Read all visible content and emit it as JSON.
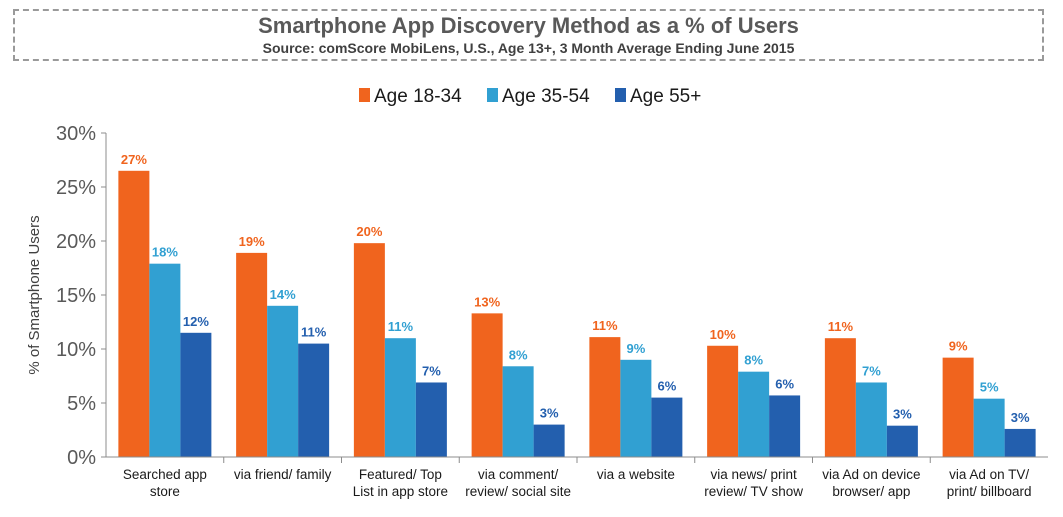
{
  "title": "Smartphone App Discovery Method as a % of Users",
  "subtitle": "Source: comScore MobiLens, U.S., Age 13+, 3 Month Average Ending June 2015",
  "chart_data": {
    "type": "bar",
    "title": "Smartphone App Discovery Method as a % of Users",
    "subtitle": "Source: comScore MobiLens, U.S., Age 13+, 3 Month Average Ending June 2015",
    "ylabel": "% of Smartphone Users",
    "xlabel": "",
    "ylim": [
      0,
      30
    ],
    "yticks": [
      "0%",
      "5%",
      "10%",
      "15%",
      "20%",
      "25%",
      "30%"
    ],
    "grid": false,
    "legend_position": "top-center",
    "categories": [
      [
        "Searched app",
        "store"
      ],
      [
        "via friend/ family"
      ],
      [
        "Featured/ Top",
        "List in app store"
      ],
      [
        "via comment/",
        "review/ social site"
      ],
      [
        "via a website"
      ],
      [
        "via news/ print",
        "review/ TV show"
      ],
      [
        "via Ad on device",
        "browser/ app"
      ],
      [
        "via Ad on TV/",
        "print/ billboard"
      ]
    ],
    "series": [
      {
        "name": "Age 18-34",
        "color": "#f0641e",
        "values": [
          26.5,
          18.9,
          19.8,
          13.3,
          11.1,
          10.3,
          11.0,
          9.2
        ],
        "labels": [
          "27%",
          "19%",
          "20%",
          "13%",
          "11%",
          "10%",
          "11%",
          "9%"
        ]
      },
      {
        "name": "Age 35-54",
        "color": "#31a0d2",
        "values": [
          17.9,
          14.0,
          11.0,
          8.4,
          9.0,
          7.9,
          6.9,
          5.4
        ],
        "labels": [
          "18%",
          "14%",
          "11%",
          "8%",
          "9%",
          "8%",
          "7%",
          "5%"
        ]
      },
      {
        "name": "Age 55+",
        "color": "#235fae",
        "values": [
          11.5,
          10.5,
          6.9,
          3.0,
          5.5,
          5.7,
          2.9,
          2.6
        ],
        "labels": [
          "12%",
          "11%",
          "7%",
          "3%",
          "6%",
          "6%",
          "3%",
          "3%"
        ]
      }
    ]
  }
}
